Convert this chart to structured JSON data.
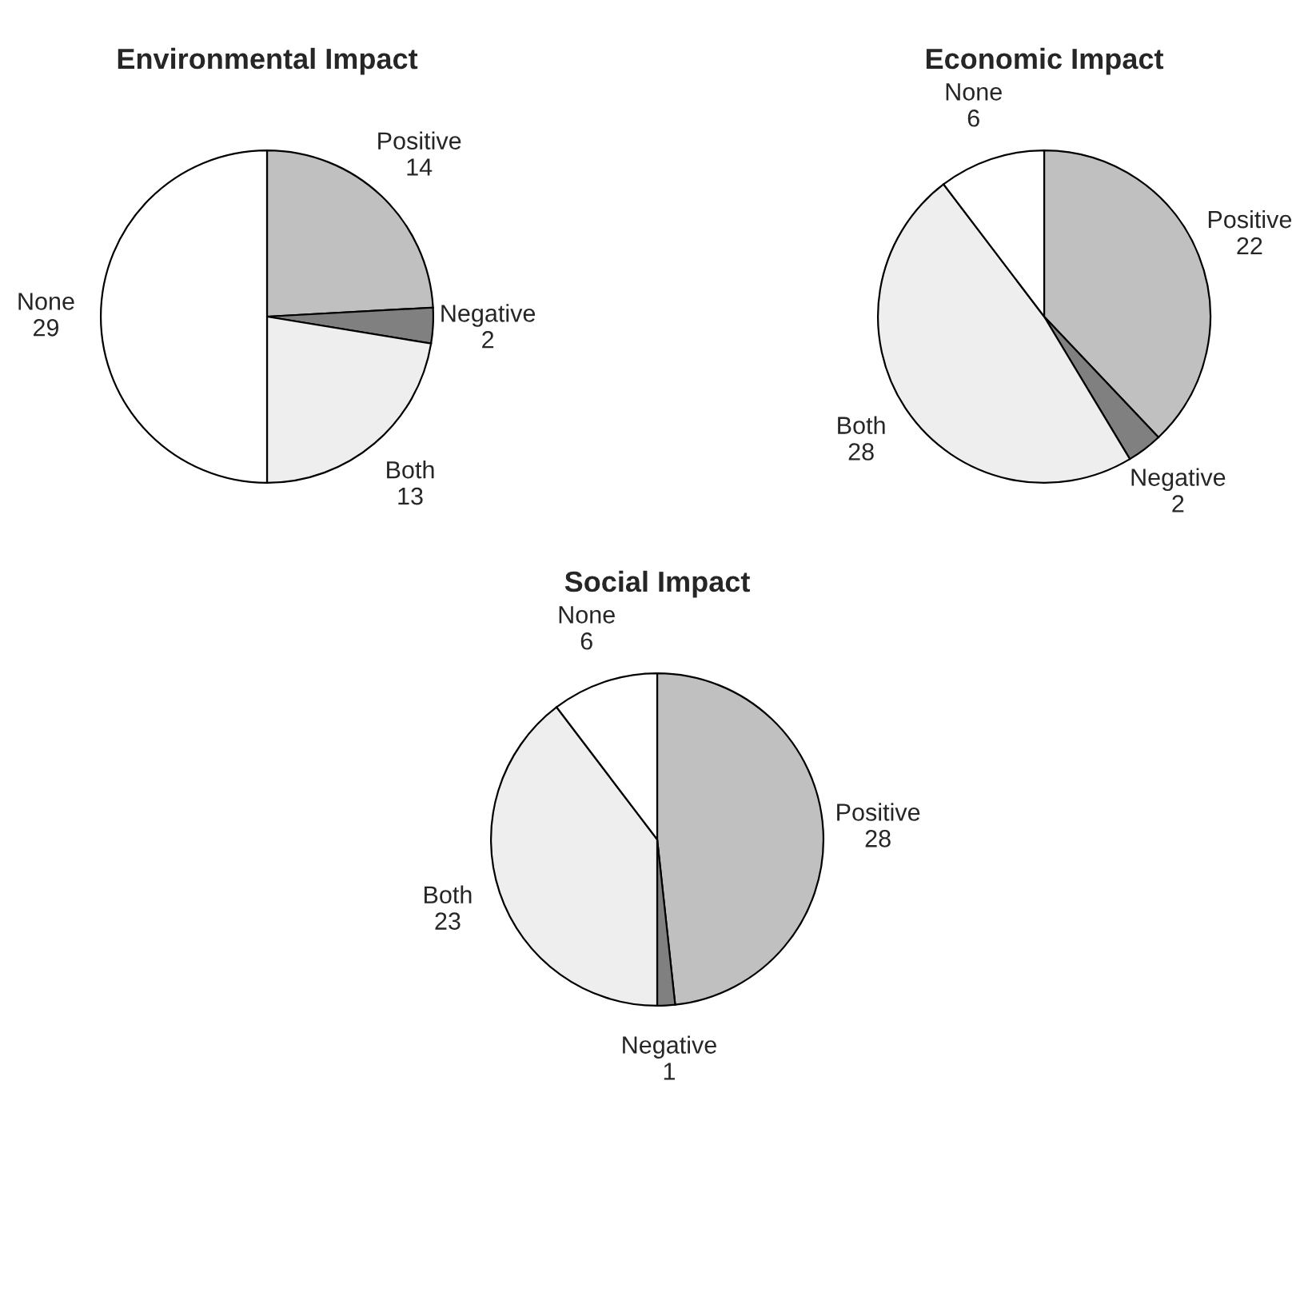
{
  "chart_data": [
    {
      "type": "pie",
      "title": "Environmental Impact",
      "categories": [
        "Positive",
        "Negative",
        "Both",
        "None"
      ],
      "values": [
        14,
        2,
        13,
        29
      ],
      "colors": [
        "#c0c0c0",
        "#808080",
        "#eeeeee",
        "#ffffff"
      ],
      "data_labels": true,
      "legend": false
    },
    {
      "type": "pie",
      "title": "Economic Impact",
      "categories": [
        "Positive",
        "Negative",
        "Both",
        "None"
      ],
      "values": [
        22,
        2,
        28,
        6
      ],
      "colors": [
        "#c0c0c0",
        "#808080",
        "#eeeeee",
        "#ffffff"
      ],
      "data_labels": true,
      "legend": false
    },
    {
      "type": "pie",
      "title": "Social Impact",
      "categories": [
        "Positive",
        "Negative",
        "Both",
        "None"
      ],
      "values": [
        28,
        1,
        23,
        6
      ],
      "colors": [
        "#c0c0c0",
        "#808080",
        "#eeeeee",
        "#ffffff"
      ],
      "data_labels": true,
      "legend": false
    }
  ]
}
